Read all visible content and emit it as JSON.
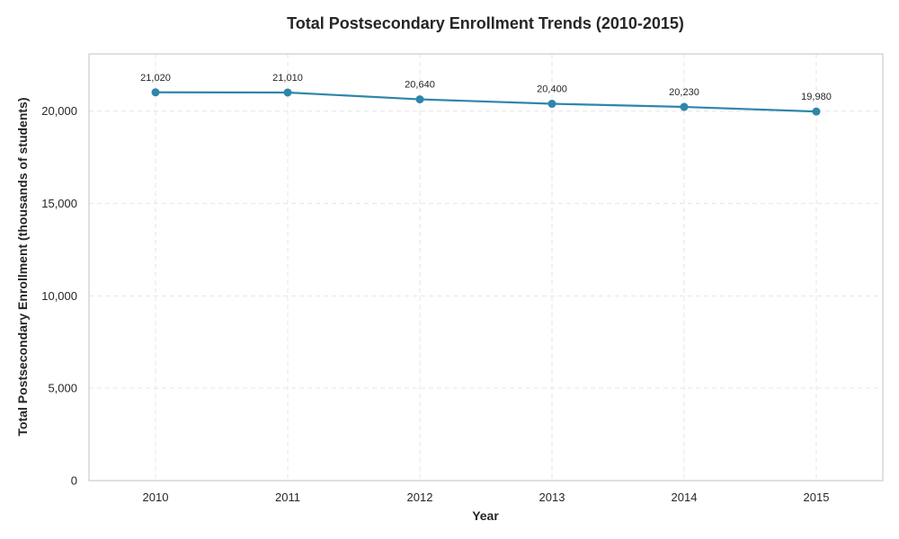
{
  "chart_data": {
    "type": "line",
    "title": "Total Postsecondary Enrollment Trends (2010-2015)",
    "xlabel": "Year",
    "ylabel": "Total Postsecondary Enrollment (thousands of students)",
    "categories": [
      "2010",
      "2011",
      "2012",
      "2013",
      "2014",
      "2015"
    ],
    "series": [
      {
        "values": [
          21020,
          21010,
          20640,
          20400,
          20230,
          19980
        ],
        "value_labels": [
          "21,020",
          "21,010",
          "20,640",
          "20,400",
          "20,230",
          "19,980"
        ],
        "color": "#2e86ab"
      }
    ],
    "ylim": [
      0,
      23100
    ],
    "yticks": [
      0,
      5000,
      10000,
      15000,
      20000
    ],
    "ytick_labels": [
      "0",
      "5,000",
      "10,000",
      "15,000",
      "20,000"
    ],
    "grid": true,
    "grid_color": "#e6e6e6",
    "frame_color": "#cccccc"
  }
}
